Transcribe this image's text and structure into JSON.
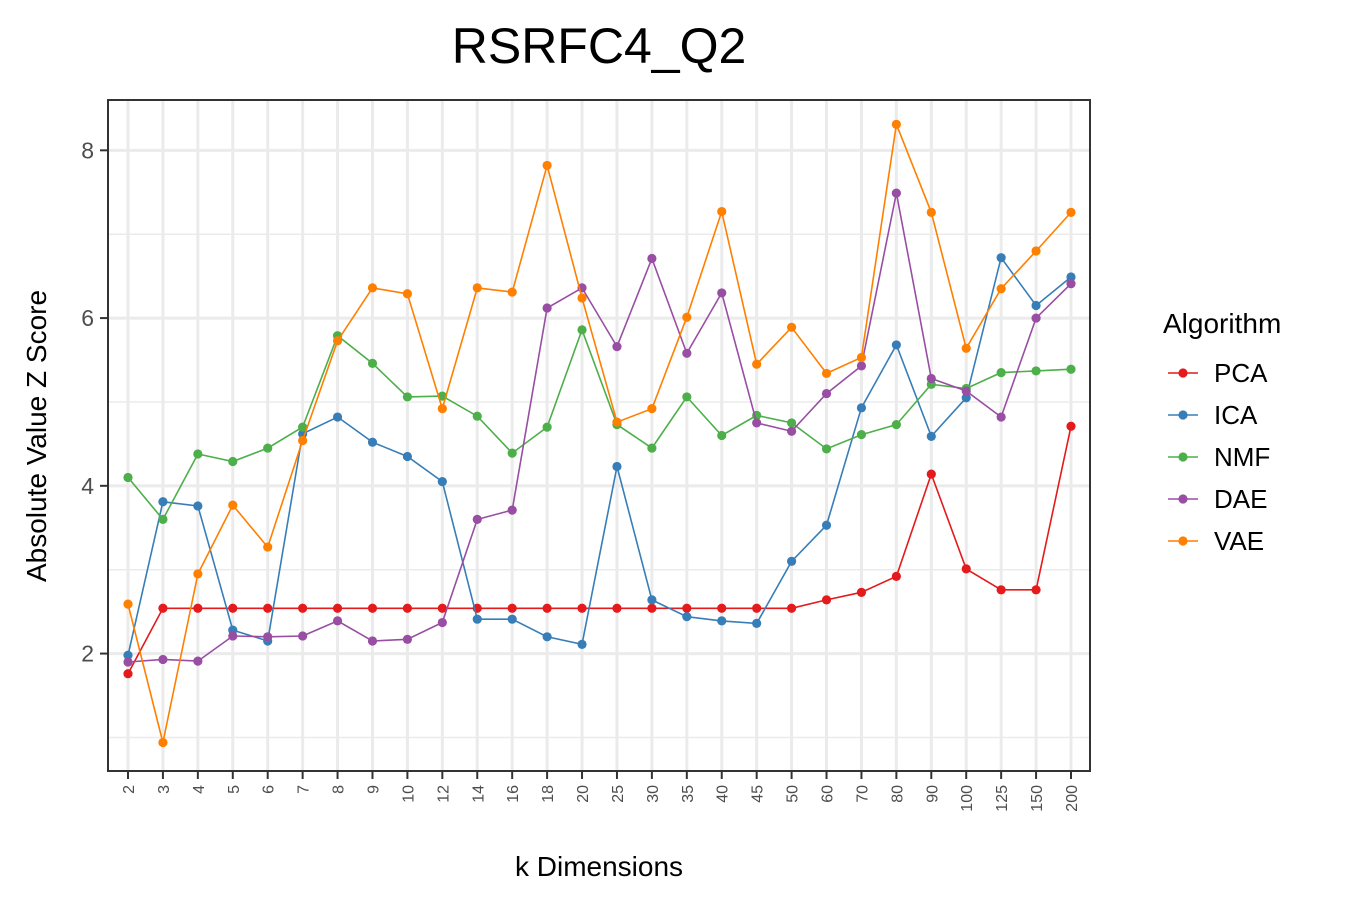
{
  "chart_data": {
    "type": "line",
    "title": "RSRFC4_Q2",
    "xlabel": "k Dimensions",
    "ylabel": "Absolute Value Z Score",
    "categories": [
      "2",
      "3",
      "4",
      "5",
      "6",
      "7",
      "8",
      "9",
      "10",
      "12",
      "14",
      "16",
      "18",
      "20",
      "25",
      "30",
      "35",
      "40",
      "45",
      "50",
      "60",
      "70",
      "80",
      "90",
      "100",
      "125",
      "150",
      "200"
    ],
    "yticks": [
      "2",
      "4",
      "6",
      "8"
    ],
    "ylim": [
      0.6,
      8.6
    ],
    "grid": true,
    "legend": {
      "title": "Algorithm",
      "position": "right"
    },
    "series": [
      {
        "name": "PCA",
        "color": "#e41a1c",
        "values": [
          1.76,
          2.54,
          2.54,
          2.54,
          2.54,
          2.54,
          2.54,
          2.54,
          2.54,
          2.54,
          2.54,
          2.54,
          2.54,
          2.54,
          2.54,
          2.54,
          2.54,
          2.54,
          2.54,
          2.54,
          2.64,
          2.73,
          2.92,
          4.14,
          3.01,
          2.76,
          2.76,
          4.71
        ]
      },
      {
        "name": "ICA",
        "color": "#377eb8",
        "values": [
          1.98,
          3.81,
          3.76,
          2.28,
          2.15,
          4.62,
          4.82,
          4.52,
          4.35,
          4.05,
          2.41,
          2.41,
          2.2,
          2.11,
          4.23,
          2.64,
          2.44,
          2.39,
          2.36,
          3.1,
          3.53,
          4.93,
          5.68,
          4.59,
          5.05,
          6.72,
          6.15,
          6.49
        ]
      },
      {
        "name": "NMF",
        "color": "#4daf4a",
        "values": [
          4.1,
          3.6,
          4.38,
          4.29,
          4.45,
          4.7,
          5.79,
          5.46,
          5.06,
          5.07,
          4.83,
          4.39,
          4.7,
          5.86,
          4.73,
          4.45,
          5.06,
          4.6,
          4.84,
          4.75,
          4.44,
          4.61,
          4.73,
          5.21,
          5.16,
          5.35,
          5.37,
          5.39
        ]
      },
      {
        "name": "DAE",
        "color": "#984ea3",
        "values": [
          1.9,
          1.93,
          1.91,
          2.21,
          2.2,
          2.21,
          2.39,
          2.15,
          2.17,
          2.37,
          3.6,
          3.71,
          6.12,
          6.36,
          5.66,
          6.71,
          5.58,
          6.3,
          4.75,
          4.65,
          5.1,
          5.43,
          7.49,
          5.28,
          5.13,
          4.82,
          6.0,
          6.41
        ]
      },
      {
        "name": "VAE",
        "color": "#ff7f00",
        "values": [
          2.59,
          0.94,
          2.95,
          3.77,
          3.27,
          4.54,
          5.73,
          6.36,
          6.29,
          4.92,
          6.36,
          6.31,
          7.82,
          6.24,
          4.76,
          4.92,
          6.01,
          7.27,
          5.45,
          5.89,
          5.34,
          5.53,
          8.31,
          7.26,
          5.64,
          6.35,
          6.8,
          7.26
        ]
      }
    ]
  }
}
